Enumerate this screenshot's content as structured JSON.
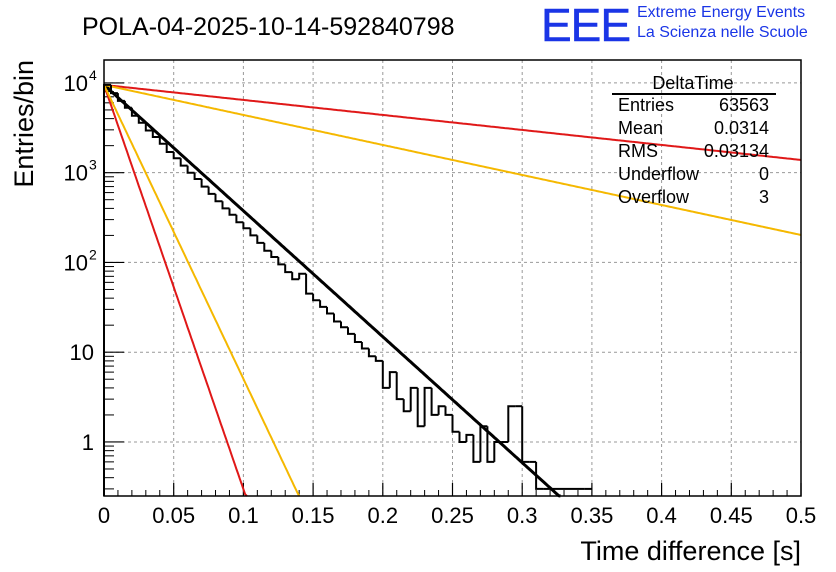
{
  "chart_data": {
    "type": "histogram",
    "title": "POLA-04-2025-10-14-592840798",
    "xlabel": "Time difference [s]",
    "ylabel": "Entries/bin",
    "xlim": [
      0,
      0.5
    ],
    "ylim": [
      0.25,
      18000
    ],
    "yscale": "log",
    "grid": true,
    "x_ticks": [
      {
        "value": 0,
        "label": "0"
      },
      {
        "value": 0.05,
        "label": "0.05"
      },
      {
        "value": 0.1,
        "label": "0.1"
      },
      {
        "value": 0.15,
        "label": "0.15"
      },
      {
        "value": 0.2,
        "label": "0.2"
      },
      {
        "value": 0.25,
        "label": "0.25"
      },
      {
        "value": 0.3,
        "label": "0.3"
      },
      {
        "value": 0.35,
        "label": "0.35"
      },
      {
        "value": 0.4,
        "label": "0.4"
      },
      {
        "value": 0.45,
        "label": "0.45"
      },
      {
        "value": 0.5,
        "label": "0.5"
      }
    ],
    "y_ticks": [
      {
        "value": 1,
        "label": "1"
      },
      {
        "value": 10,
        "label": "10"
      },
      {
        "value": 100,
        "label": "10",
        "exp": "2"
      },
      {
        "value": 1000,
        "label": "10",
        "exp": "3"
      },
      {
        "value": 10000,
        "label": "10",
        "exp": "4"
      }
    ],
    "histogram": {
      "name": "DeltaTime",
      "bin_width": 0.005,
      "x_start": 0,
      "color": "#000000",
      "values": [
        9500,
        7700,
        6300,
        5300,
        4300,
        3600,
        2950,
        2500,
        2100,
        1700,
        1450,
        1200,
        1000,
        850,
        700,
        580,
        480,
        400,
        340,
        280,
        240,
        200,
        165,
        135,
        115,
        95,
        78,
        65,
        75,
        45,
        38,
        32,
        27,
        22,
        19,
        16,
        13,
        11,
        9,
        8,
        4,
        6,
        3,
        2.2,
        4,
        1.5,
        4,
        2,
        2.5,
        2,
        1.3,
        1,
        1.2,
        0.6,
        1.5,
        0.6,
        1,
        1,
        2.5,
        2.5,
        0.6,
        0.6,
        0.3,
        0.3,
        0.3,
        0.3,
        0.3,
        0.3,
        0.3,
        0.3
      ]
    },
    "fits": [
      {
        "name": "fit",
        "color": "#000000",
        "width": 3,
        "a": 9500,
        "b": 32.3
      },
      {
        "name": "red-steep",
        "color": "#e01818",
        "width": 2,
        "a": 9500,
        "b": 103.7
      },
      {
        "name": "orange-steep",
        "color": "#f5b800",
        "width": 2,
        "a": 9500,
        "b": 75.4
      },
      {
        "name": "red-shallow",
        "color": "#e01818",
        "width": 2,
        "a": 9500,
        "b": 3.85
      },
      {
        "name": "orange-shallow",
        "color": "#f5b800",
        "width": 2,
        "a": 9500,
        "b": 7.7
      }
    ],
    "stats": {
      "title": "DeltaTime",
      "rows": [
        {
          "label": "Entries",
          "value": "63563"
        },
        {
          "label": "Mean",
          "value": "0.0314"
        },
        {
          "label": "RMS",
          "value": "0.03134"
        },
        {
          "label": "Underflow",
          "value": "0"
        },
        {
          "label": "Overflow",
          "value": "3"
        }
      ]
    }
  },
  "logo": {
    "mark": "EEE",
    "line1": "Extreme Energy Events",
    "line2": "La Scienza nelle Scuole",
    "color": "#1a35e6"
  }
}
